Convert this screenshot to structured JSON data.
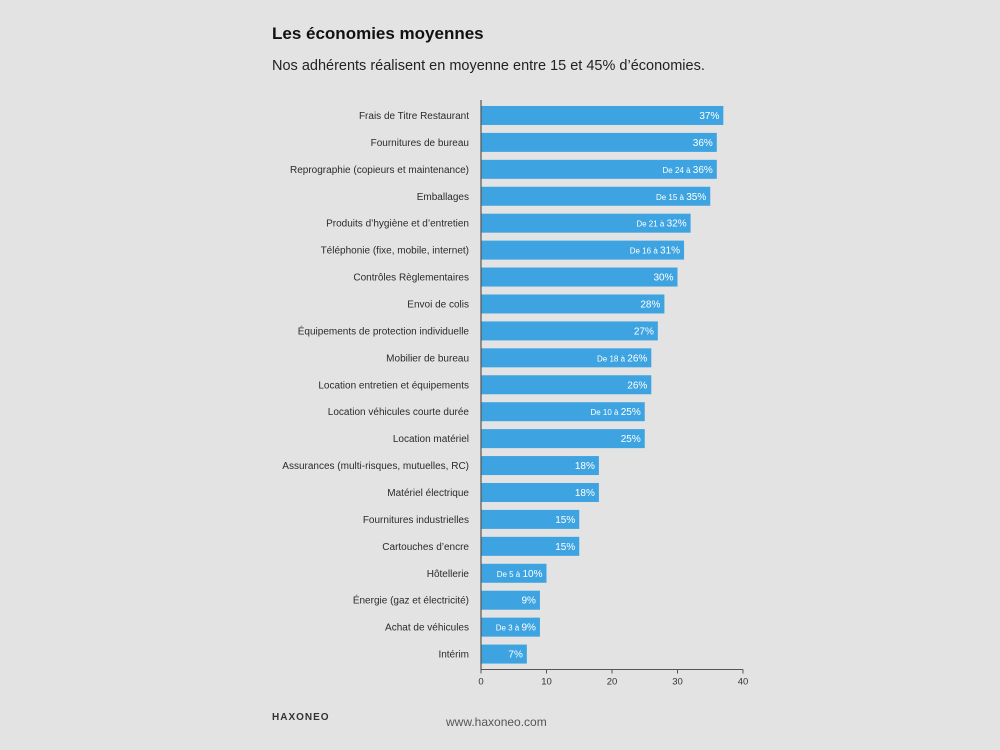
{
  "header": {
    "title": "Les économies moyennes",
    "subtitle": "Nos adhérents réalisent en moyenne entre 15 et 45% d’économies."
  },
  "footer": {
    "logo": "HAXONEO",
    "website": "www.haxoneo.com"
  },
  "colors": {
    "bar": "#3ea4e1",
    "axis": "#555555",
    "background": "#e3e3e3"
  },
  "chart_data": {
    "type": "bar",
    "orientation": "horizontal",
    "categories": [
      "Frais de Titre Restaurant",
      "Fournitures de bureau",
      "Reprographie (copieurs et maintenance)",
      "Emballages",
      "Produits d’hygiène et d’entretien",
      "Téléphonie (fixe, mobile, internet)",
      "Contrôles Règlementaires",
      "Envoi de colis",
      "Équipements de protection individuelle",
      "Mobilier de bureau",
      "Location entretien et équipements",
      "Location véhicules courte durée",
      "Location matériel",
      "Assurances (multi-risques, mutuelles, RC)",
      "Matériel électrique",
      "Fournitures industrielles",
      "Cartouches d’encre",
      "Hôtellerie",
      "Énergie (gaz et électricité)",
      "Achat de véhicules",
      "Intérim"
    ],
    "values": [
      37,
      36,
      36,
      35,
      32,
      31,
      30,
      28,
      27,
      26,
      26,
      25,
      25,
      18,
      18,
      15,
      15,
      10,
      9,
      9,
      7
    ],
    "labels_prefix": [
      "",
      "",
      "De 24 à",
      "De 15 à",
      "De 21 à",
      "De 16 à",
      "",
      "",
      "",
      "De 18 à",
      "",
      "De 10 à",
      "",
      "",
      "",
      "",
      "",
      "De 5 à",
      "",
      "De 3 à",
      ""
    ],
    "labels": [
      "37%",
      "36%",
      "36%",
      "35%",
      "32%",
      "31%",
      "30%",
      "28%",
      "27%",
      "26%",
      "26%",
      "25%",
      "25%",
      "18%",
      "18%",
      "15%",
      "15%",
      "10%",
      "9%",
      "9%",
      "7%"
    ],
    "xticks": [
      "0",
      "10",
      "20",
      "30",
      "40"
    ],
    "xlim": [
      0,
      40
    ],
    "grid": false,
    "title": "Les économies moyennes",
    "xlabel": "",
    "ylabel": ""
  }
}
